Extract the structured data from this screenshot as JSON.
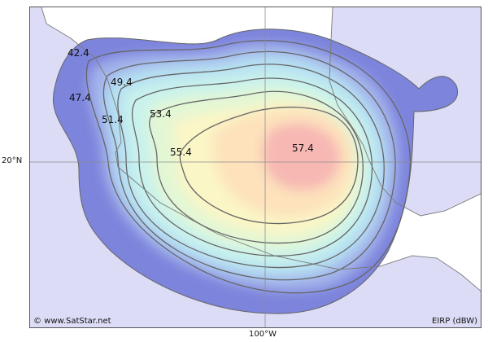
{
  "map": {
    "lat_label": "20°N",
    "lon_label": "100°W",
    "copyright": "© www.SatStar.net",
    "unit_label": "EIRP (dBW)",
    "colors": {
      "land": "#dcdcf6",
      "water": "#ffffff",
      "coast": "#7a7a7a",
      "outer": "#7d84dc",
      "ring2": "#a2b2ea",
      "ring3": "#b6e0f2",
      "ring4": "#c9f2ec",
      "ring5": "#e3f7d4",
      "ring6": "#fbf6c6",
      "ring7": "#fde2bc",
      "core": "#f7b8b4",
      "contour": "#666666",
      "graticule": "#8c8c8c"
    },
    "contours": [
      {
        "value": "42.4"
      },
      {
        "value": "47.4"
      },
      {
        "value": "49.4"
      },
      {
        "value": "51.4"
      },
      {
        "value": "53.4"
      },
      {
        "value": "55.4"
      },
      {
        "value": "57.4"
      }
    ]
  }
}
